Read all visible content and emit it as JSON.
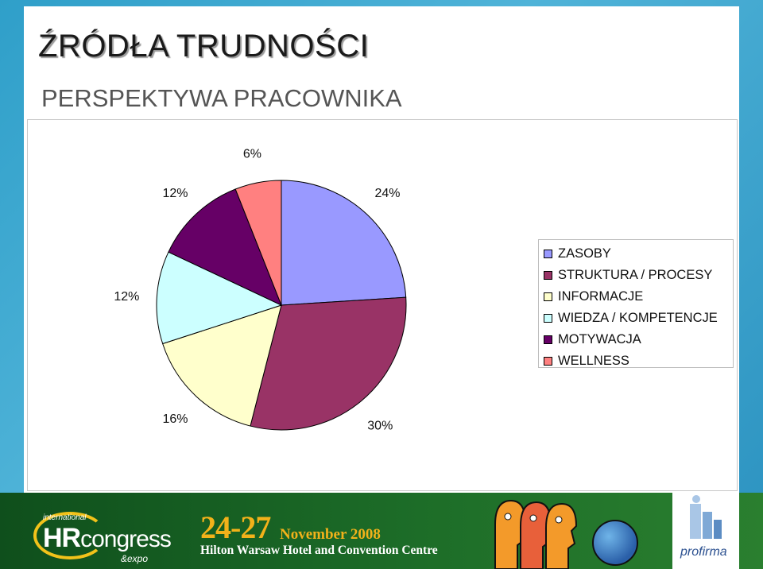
{
  "slide": {
    "title": "ŹRÓDŁA TRUDNOŚCI",
    "subtitle": "PERSPEKTYWA PRACOWNIKA"
  },
  "chart_data": {
    "type": "pie",
    "title": "",
    "start_angle_deg": 0,
    "direction": "clockwise",
    "slices": [
      {
        "label": "ZASOBY",
        "value": 24,
        "data_label": "24%",
        "color": "#9999ff"
      },
      {
        "label": "STRUKTURA / PROCESY",
        "value": 30,
        "data_label": "30%",
        "color": "#993366"
      },
      {
        "label": "INFORMACJE",
        "value": 16,
        "data_label": "16%",
        "color": "#ffffcc"
      },
      {
        "label": "WIEDZA / KOMPETENCJE",
        "value": 12,
        "data_label": "12%",
        "color": "#ccffff"
      },
      {
        "label": "MOTYWACJA",
        "value": 12,
        "data_label": "12%",
        "color": "#660066"
      },
      {
        "label": "WELLNESS",
        "value": 6,
        "data_label": "6%",
        "color": "#ff8080"
      }
    ],
    "legend_position": "right"
  },
  "footer": {
    "hr_small": "international",
    "hr_main_bold": "HR",
    "hr_main_rest": "congress",
    "hr_expo": "&expo",
    "dates": "24-27",
    "month": "November 2008",
    "venue": "Hilton Warsaw Hotel and Convention Centre",
    "sponsor": "profirma",
    "footer_color": "#1d6d28",
    "accent_color": "#f2b21a"
  }
}
